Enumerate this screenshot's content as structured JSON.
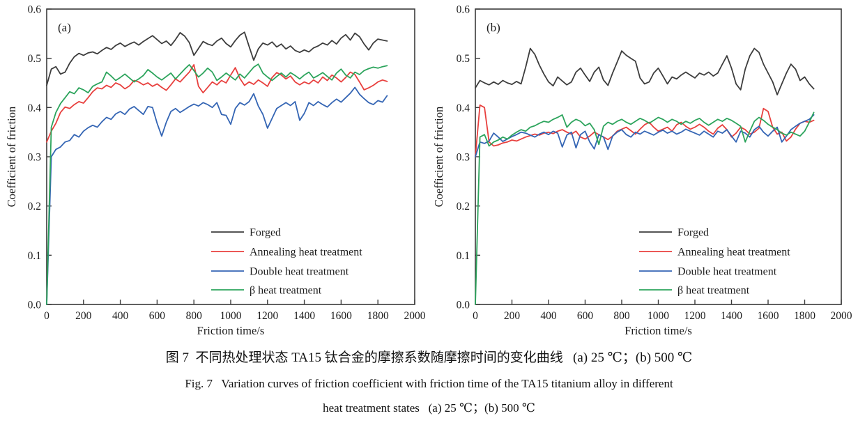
{
  "caption": {
    "zh": "图 7  不同热处理状态 TA15 钛合金的摩擦系数随摩擦时间的变化曲线   (a) 25 ℃；(b) 500 ℃",
    "en1": "Fig. 7   Variation curves of friction coefficient with friction time of the TA15 titanium alloy in different",
    "en2": "heat treatment states   (a) 25 ℃；(b) 500 ℃"
  },
  "colors": {
    "forged": "#3d3d3d",
    "annealing": "#e8403e",
    "double": "#3465b4",
    "beta": "#2ca45c",
    "axis": "#3a3a3a"
  },
  "chart_data": [
    {
      "type": "line",
      "panel_label": "(a)",
      "condition": "25 ℃",
      "xlabel": "Friction time/s",
      "ylabel": "Coefficient of friction",
      "xlim": [
        0,
        2000
      ],
      "ylim": [
        0.0,
        0.6
      ],
      "xticks": [
        "0",
        "200",
        "400",
        "600",
        "800",
        "1000",
        "1200",
        "1400",
        "1600",
        "1800",
        "2000"
      ],
      "yticks": [
        "0.0",
        "0.1",
        "0.2",
        "0.3",
        "0.4",
        "0.5",
        "0.6"
      ],
      "grid": false,
      "legend_position": "lower-right-inside",
      "x_step": 25,
      "series": [
        {
          "name": "Forged",
          "color": "#3d3d3d",
          "values": [
            0.445,
            0.478,
            0.483,
            0.468,
            0.472,
            0.49,
            0.503,
            0.51,
            0.506,
            0.511,
            0.513,
            0.509,
            0.516,
            0.522,
            0.518,
            0.526,
            0.531,
            0.524,
            0.529,
            0.533,
            0.527,
            0.534,
            0.54,
            0.546,
            0.538,
            0.53,
            0.535,
            0.526,
            0.538,
            0.552,
            0.545,
            0.532,
            0.506,
            0.52,
            0.534,
            0.529,
            0.526,
            0.535,
            0.541,
            0.53,
            0.523,
            0.536,
            0.547,
            0.553,
            0.524,
            0.496,
            0.519,
            0.531,
            0.527,
            0.533,
            0.523,
            0.529,
            0.519,
            0.525,
            0.516,
            0.512,
            0.517,
            0.513,
            0.521,
            0.525,
            0.531,
            0.527,
            0.536,
            0.529,
            0.541,
            0.548,
            0.537,
            0.551,
            0.544,
            0.529,
            0.517,
            0.531,
            0.539,
            0.537,
            0.535
          ]
        },
        {
          "name": "Annealing heat treatment",
          "color": "#e8403e",
          "values": [
            0.33,
            0.352,
            0.368,
            0.39,
            0.401,
            0.398,
            0.406,
            0.412,
            0.409,
            0.42,
            0.432,
            0.44,
            0.438,
            0.445,
            0.441,
            0.45,
            0.446,
            0.438,
            0.444,
            0.455,
            0.452,
            0.446,
            0.45,
            0.443,
            0.448,
            0.441,
            0.435,
            0.446,
            0.458,
            0.452,
            0.462,
            0.472,
            0.487,
            0.443,
            0.43,
            0.441,
            0.452,
            0.446,
            0.455,
            0.45,
            0.466,
            0.481,
            0.459,
            0.445,
            0.452,
            0.447,
            0.456,
            0.45,
            0.443,
            0.461,
            0.471,
            0.466,
            0.458,
            0.464,
            0.452,
            0.446,
            0.452,
            0.448,
            0.456,
            0.45,
            0.462,
            0.455,
            0.466,
            0.46,
            0.452,
            0.461,
            0.472,
            0.467,
            0.452,
            0.436,
            0.44,
            0.445,
            0.452,
            0.456,
            0.453
          ]
        },
        {
          "name": "Double heat treatment",
          "color": "#3465b4",
          "values": [
            0.0,
            0.3,
            0.315,
            0.32,
            0.33,
            0.333,
            0.345,
            0.34,
            0.352,
            0.359,
            0.364,
            0.36,
            0.371,
            0.38,
            0.376,
            0.387,
            0.392,
            0.386,
            0.397,
            0.402,
            0.394,
            0.386,
            0.402,
            0.4,
            0.368,
            0.342,
            0.37,
            0.392,
            0.398,
            0.39,
            0.396,
            0.402,
            0.407,
            0.403,
            0.41,
            0.406,
            0.4,
            0.41,
            0.386,
            0.384,
            0.366,
            0.398,
            0.41,
            0.405,
            0.412,
            0.428,
            0.403,
            0.386,
            0.358,
            0.378,
            0.398,
            0.404,
            0.41,
            0.404,
            0.412,
            0.374,
            0.388,
            0.41,
            0.404,
            0.412,
            0.406,
            0.401,
            0.41,
            0.417,
            0.411,
            0.42,
            0.429,
            0.441,
            0.427,
            0.418,
            0.41,
            0.406,
            0.414,
            0.411,
            0.424
          ]
        },
        {
          "name": "β heat treatment",
          "color": "#2ca45c",
          "values": [
            0.0,
            0.36,
            0.39,
            0.408,
            0.42,
            0.432,
            0.428,
            0.44,
            0.436,
            0.43,
            0.443,
            0.448,
            0.452,
            0.472,
            0.464,
            0.455,
            0.461,
            0.468,
            0.46,
            0.452,
            0.458,
            0.465,
            0.477,
            0.47,
            0.462,
            0.456,
            0.463,
            0.47,
            0.458,
            0.468,
            0.478,
            0.487,
            0.475,
            0.462,
            0.47,
            0.48,
            0.472,
            0.455,
            0.462,
            0.47,
            0.463,
            0.456,
            0.468,
            0.46,
            0.471,
            0.482,
            0.488,
            0.47,
            0.462,
            0.455,
            0.463,
            0.47,
            0.462,
            0.471,
            0.465,
            0.458,
            0.466,
            0.472,
            0.46,
            0.465,
            0.471,
            0.463,
            0.456,
            0.47,
            0.478,
            0.466,
            0.46,
            0.472,
            0.467,
            0.475,
            0.479,
            0.482,
            0.48,
            0.483,
            0.485
          ]
        }
      ]
    },
    {
      "type": "line",
      "panel_label": "(b)",
      "condition": "500 ℃",
      "xlabel": "Friction time/s",
      "ylabel": "Coefficient of friction",
      "xlim": [
        0,
        2000
      ],
      "ylim": [
        0.0,
        0.6
      ],
      "xticks": [
        "0",
        "200",
        "400",
        "600",
        "800",
        "1000",
        "1200",
        "1400",
        "1600",
        "1800",
        "2000"
      ],
      "yticks": [
        "0.0",
        "0.1",
        "0.2",
        "0.3",
        "0.4",
        "0.5",
        "0.6"
      ],
      "grid": false,
      "legend_position": "lower-right-inside",
      "x_step": 25,
      "series": [
        {
          "name": "Forged",
          "color": "#3d3d3d",
          "values": [
            0.44,
            0.455,
            0.45,
            0.446,
            0.452,
            0.447,
            0.455,
            0.45,
            0.447,
            0.453,
            0.448,
            0.482,
            0.52,
            0.508,
            0.486,
            0.468,
            0.452,
            0.444,
            0.462,
            0.454,
            0.446,
            0.452,
            0.472,
            0.48,
            0.466,
            0.453,
            0.472,
            0.482,
            0.456,
            0.445,
            0.47,
            0.492,
            0.515,
            0.506,
            0.5,
            0.494,
            0.46,
            0.448,
            0.452,
            0.47,
            0.48,
            0.464,
            0.448,
            0.462,
            0.458,
            0.466,
            0.472,
            0.466,
            0.46,
            0.47,
            0.466,
            0.472,
            0.464,
            0.47,
            0.488,
            0.505,
            0.48,
            0.448,
            0.436,
            0.478,
            0.505,
            0.52,
            0.512,
            0.488,
            0.47,
            0.452,
            0.426,
            0.448,
            0.47,
            0.488,
            0.478,
            0.455,
            0.462,
            0.448,
            0.438
          ]
        },
        {
          "name": "Annealing heat treatment",
          "color": "#e8403e",
          "values": [
            0.3,
            0.405,
            0.4,
            0.33,
            0.322,
            0.324,
            0.328,
            0.33,
            0.334,
            0.332,
            0.336,
            0.34,
            0.343,
            0.346,
            0.344,
            0.348,
            0.35,
            0.347,
            0.352,
            0.355,
            0.35,
            0.346,
            0.352,
            0.34,
            0.336,
            0.342,
            0.35,
            0.345,
            0.34,
            0.335,
            0.342,
            0.352,
            0.356,
            0.36,
            0.353,
            0.346,
            0.356,
            0.365,
            0.37,
            0.36,
            0.352,
            0.356,
            0.36,
            0.352,
            0.365,
            0.37,
            0.362,
            0.356,
            0.36,
            0.366,
            0.36,
            0.352,
            0.346,
            0.358,
            0.365,
            0.355,
            0.34,
            0.348,
            0.36,
            0.355,
            0.346,
            0.35,
            0.358,
            0.398,
            0.392,
            0.36,
            0.346,
            0.35,
            0.332,
            0.34,
            0.356,
            0.368,
            0.372,
            0.37,
            0.374
          ]
        },
        {
          "name": "Double heat treatment",
          "color": "#3465b4",
          "values": [
            0.3,
            0.33,
            0.327,
            0.332,
            0.348,
            0.34,
            0.331,
            0.336,
            0.341,
            0.345,
            0.35,
            0.348,
            0.344,
            0.34,
            0.346,
            0.35,
            0.345,
            0.352,
            0.348,
            0.32,
            0.344,
            0.35,
            0.318,
            0.345,
            0.352,
            0.33,
            0.316,
            0.345,
            0.34,
            0.315,
            0.342,
            0.35,
            0.355,
            0.345,
            0.34,
            0.35,
            0.346,
            0.352,
            0.348,
            0.344,
            0.35,
            0.354,
            0.348,
            0.352,
            0.346,
            0.35,
            0.356,
            0.352,
            0.348,
            0.344,
            0.352,
            0.346,
            0.34,
            0.352,
            0.348,
            0.355,
            0.342,
            0.33,
            0.352,
            0.348,
            0.34,
            0.355,
            0.362,
            0.35,
            0.342,
            0.352,
            0.36,
            0.33,
            0.342,
            0.355,
            0.362,
            0.368,
            0.372,
            0.376,
            0.385
          ]
        },
        {
          "name": "β heat treatment",
          "color": "#2ca45c",
          "values": [
            0.0,
            0.34,
            0.345,
            0.322,
            0.33,
            0.334,
            0.34,
            0.336,
            0.344,
            0.35,
            0.355,
            0.352,
            0.36,
            0.363,
            0.368,
            0.372,
            0.37,
            0.376,
            0.38,
            0.385,
            0.36,
            0.37,
            0.376,
            0.372,
            0.363,
            0.368,
            0.355,
            0.325,
            0.362,
            0.37,
            0.366,
            0.372,
            0.376,
            0.37,
            0.366,
            0.372,
            0.378,
            0.374,
            0.368,
            0.374,
            0.38,
            0.376,
            0.37,
            0.376,
            0.372,
            0.366,
            0.372,
            0.368,
            0.374,
            0.378,
            0.37,
            0.364,
            0.37,
            0.376,
            0.372,
            0.378,
            0.374,
            0.368,
            0.362,
            0.33,
            0.352,
            0.372,
            0.38,
            0.374,
            0.366,
            0.36,
            0.355,
            0.348,
            0.344,
            0.35,
            0.346,
            0.342,
            0.352,
            0.37,
            0.39
          ]
        }
      ]
    }
  ]
}
